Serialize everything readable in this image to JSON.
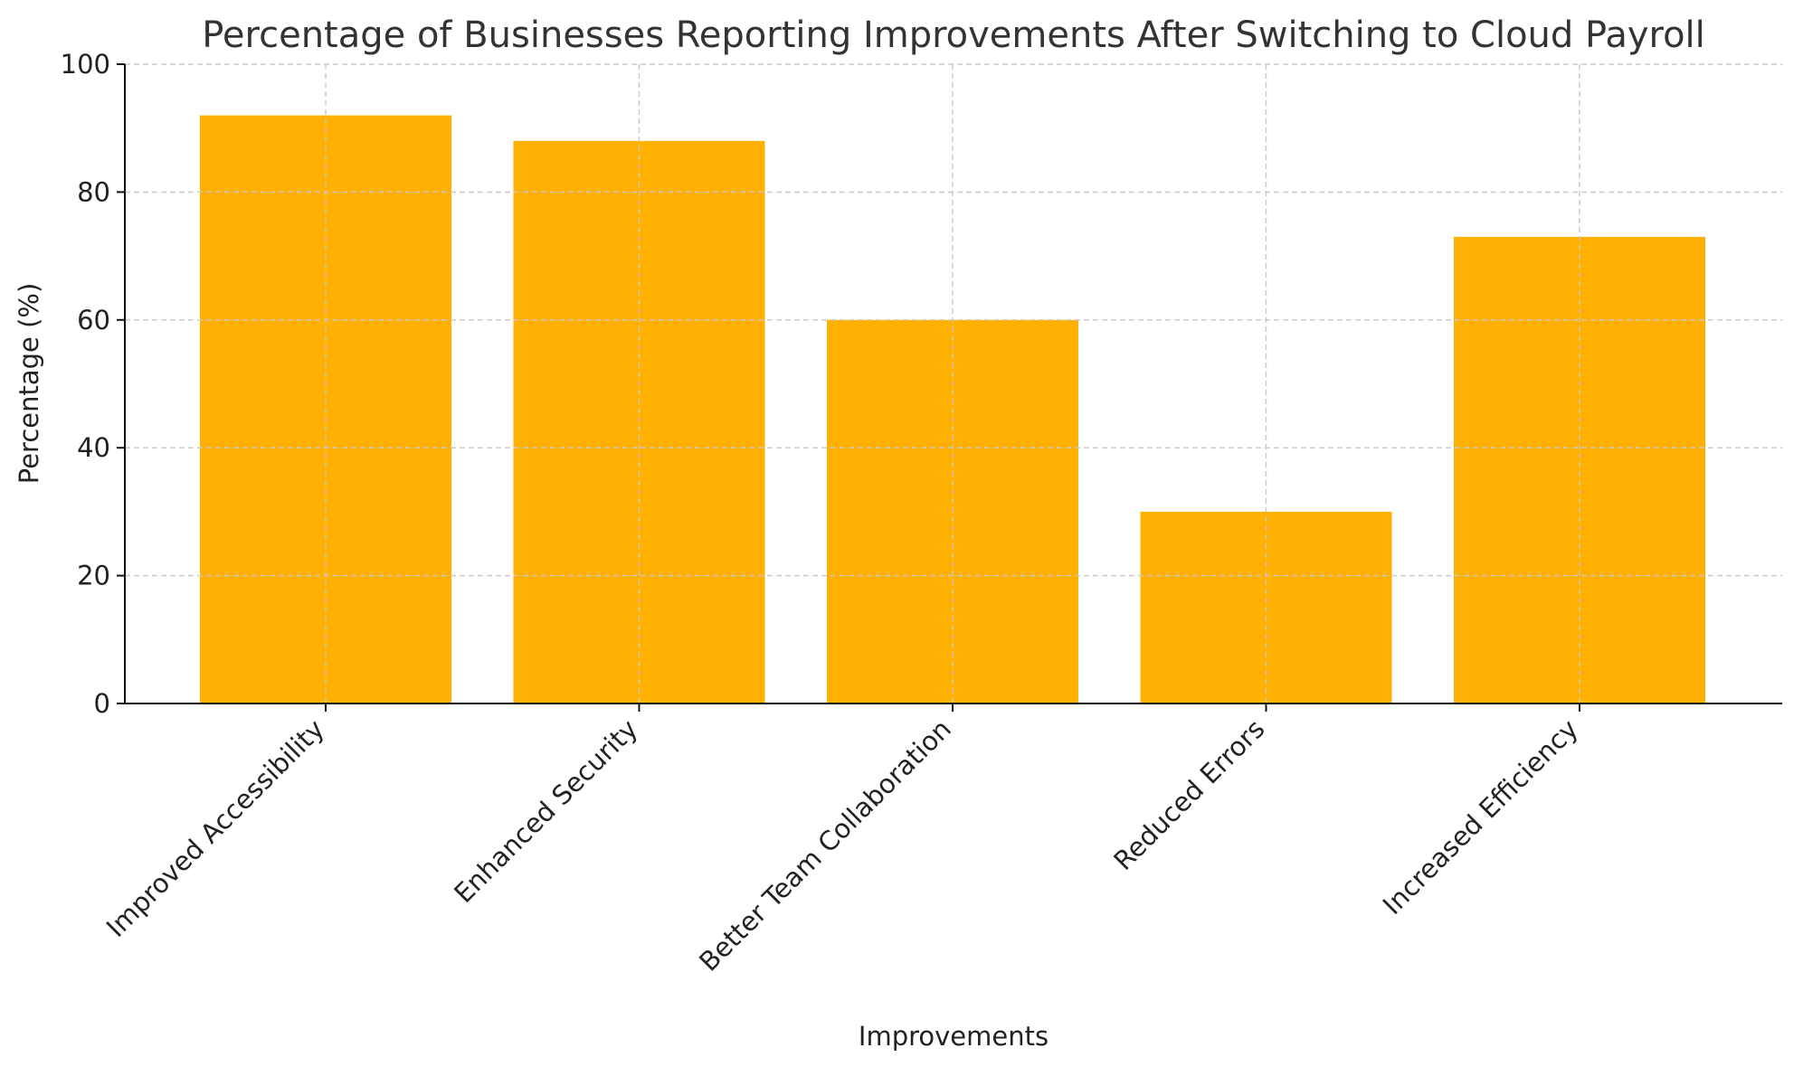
{
  "chart_data": {
    "type": "bar",
    "title": "Percentage of Businesses Reporting Improvements After Switching to Cloud Payroll",
    "xlabel": "Improvements",
    "ylabel": "Percentage (%)",
    "categories": [
      "Improved Accessibility",
      "Enhanced Security",
      "Better Team Collaboration",
      "Reduced Errors",
      "Increased Efficiency"
    ],
    "values": [
      92,
      88,
      60,
      30,
      73
    ],
    "ylim": [
      0,
      100
    ],
    "yticks": [
      "0",
      "20",
      "40",
      "60",
      "80",
      "100"
    ],
    "bar_color": "#FFB000",
    "grid": true
  }
}
